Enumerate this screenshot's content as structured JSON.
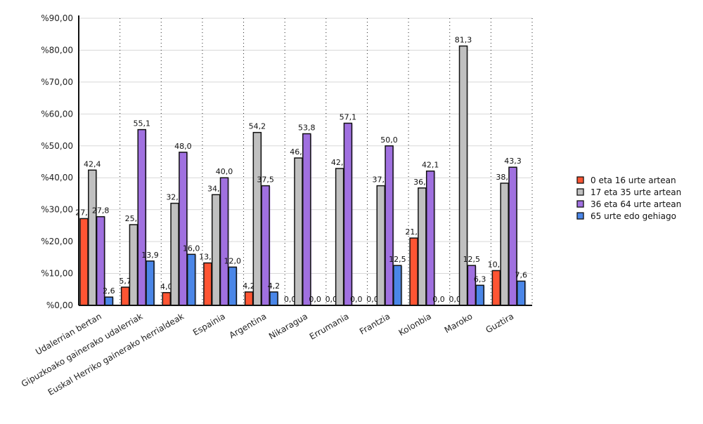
{
  "chart_data": {
    "type": "bar",
    "title": "",
    "xlabel": "",
    "ylabel": "",
    "ylim": [
      0,
      90
    ],
    "y_ticks": [
      "%0,00",
      "%10,00",
      "%20,00",
      "%30,00",
      "%40,00",
      "%50,00",
      "%60,00",
      "%70,00",
      "%80,00",
      "%90,00"
    ],
    "grid": true,
    "legend_position": "right",
    "categories": [
      "Udalerrian bertan",
      "Gipuzkoako gainerako udalerriak",
      "Euskal Herriko gainerako herrialdeak",
      "Espainia",
      "Argentina",
      "Nikaragua",
      "Errumania",
      "Frantzia",
      "Kolonbia",
      "Maroko",
      "Guztira"
    ],
    "series": [
      {
        "name": "0 eta 16 urte artean",
        "color": "#ff5533",
        "values": [
          27.2,
          5.7,
          4.0,
          13.3,
          4.2,
          0.0,
          0.0,
          0.0,
          21.1,
          0.0,
          10.9
        ]
      },
      {
        "name": "17 eta 35 urte artean",
        "color": "#c0c0c0",
        "values": [
          42.4,
          25.3,
          32.0,
          34.7,
          54.2,
          46.2,
          42.9,
          37.5,
          36.8,
          81.3,
          38.3
        ]
      },
      {
        "name": "36 eta 64 urte artean",
        "color": "#a070e0",
        "values": [
          27.8,
          55.1,
          48.0,
          40.0,
          37.5,
          53.8,
          57.1,
          50.0,
          42.1,
          12.5,
          43.3
        ]
      },
      {
        "name": "65 urte edo gehiago",
        "color": "#4a86e8",
        "values": [
          2.6,
          13.9,
          16.0,
          12.0,
          4.2,
          0.0,
          0.0,
          12.5,
          0.0,
          6.3,
          7.6
        ]
      }
    ]
  }
}
